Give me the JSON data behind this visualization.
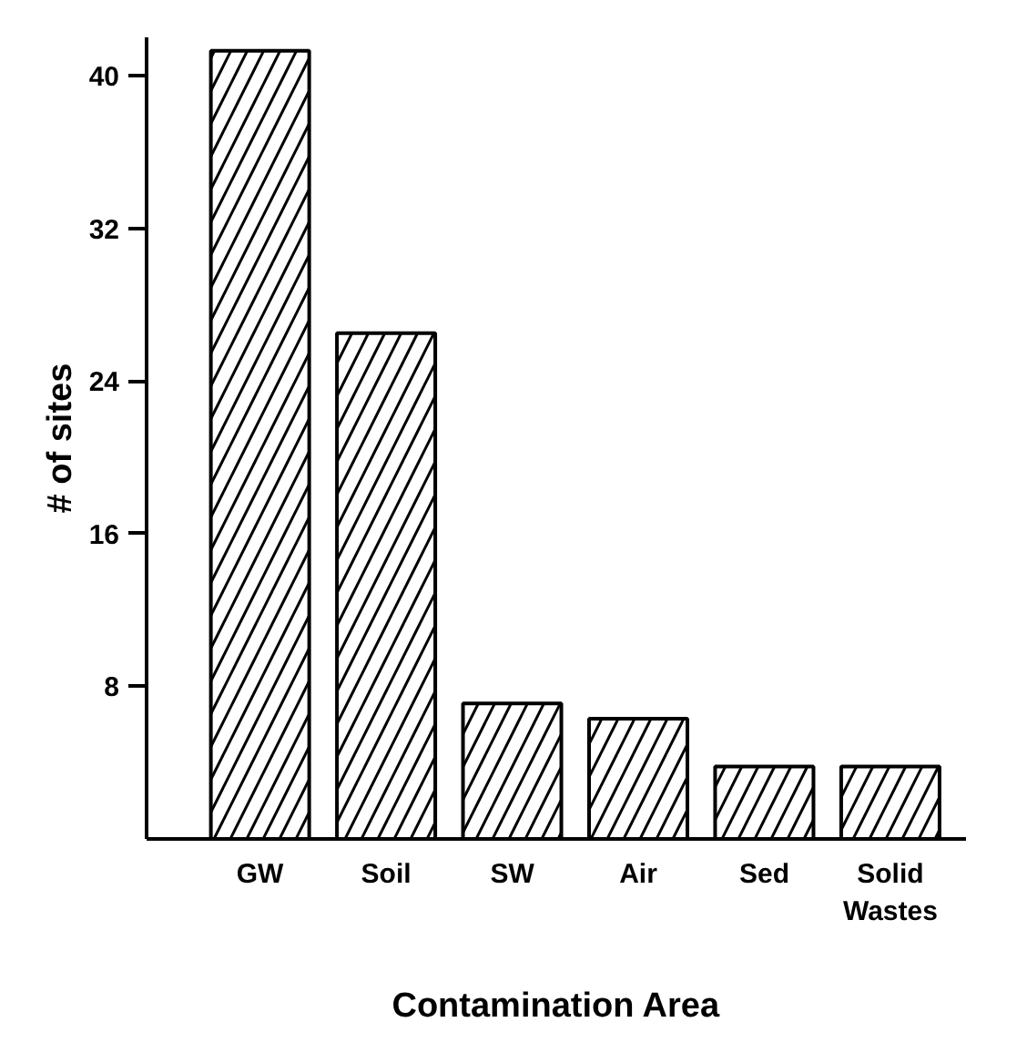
{
  "chart_data": {
    "type": "bar",
    "xlabel": "Contamination Area",
    "ylabel": "# of sites",
    "categories": [
      "GW",
      "Soil",
      "SW",
      "Air",
      "Sed",
      "Solid\nWastes"
    ],
    "values": [
      41.3,
      26.5,
      7.1,
      6.3,
      3.8,
      3.8
    ],
    "color": "#ffffff",
    "ylim": [
      0,
      42
    ],
    "yticks": [
      8,
      16,
      24,
      32,
      40
    ],
    "grid": false
  }
}
